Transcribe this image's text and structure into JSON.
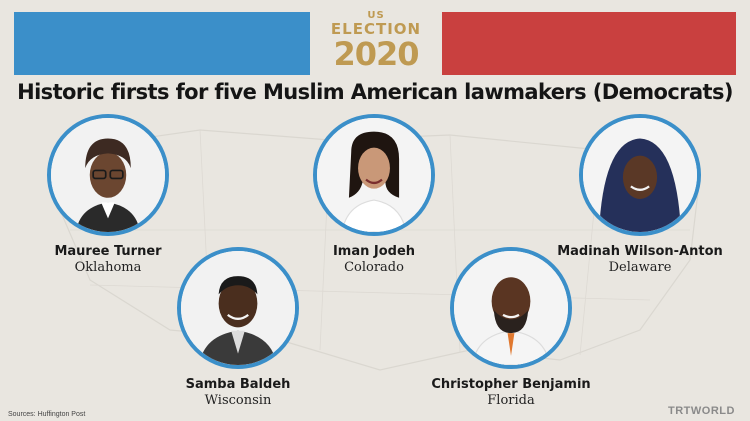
{
  "header": {
    "logo_small": "US",
    "logo_election": "ELECTION",
    "logo_year": "2020",
    "title": "Historic firsts for five Muslim American lawmakers (Democrats)"
  },
  "people": [
    {
      "name": "Mauree Turner",
      "state": "Oklahoma"
    },
    {
      "name": "Iman Jodeh",
      "state": "Colorado"
    },
    {
      "name": "Madinah Wilson-Anton",
      "state": "Delaware"
    },
    {
      "name": "Samba Baldeh",
      "state": "Wisconsin"
    },
    {
      "name": "Christopher Benjamin",
      "state": "Florida"
    }
  ],
  "footer": {
    "sources": "Sources: Huffington Post",
    "brand": "TRTWORLD"
  },
  "colors": {
    "blue": "#3b8fc9",
    "red": "#c9403f",
    "gold": "#bf9a52",
    "background": "#e9e6e0"
  }
}
